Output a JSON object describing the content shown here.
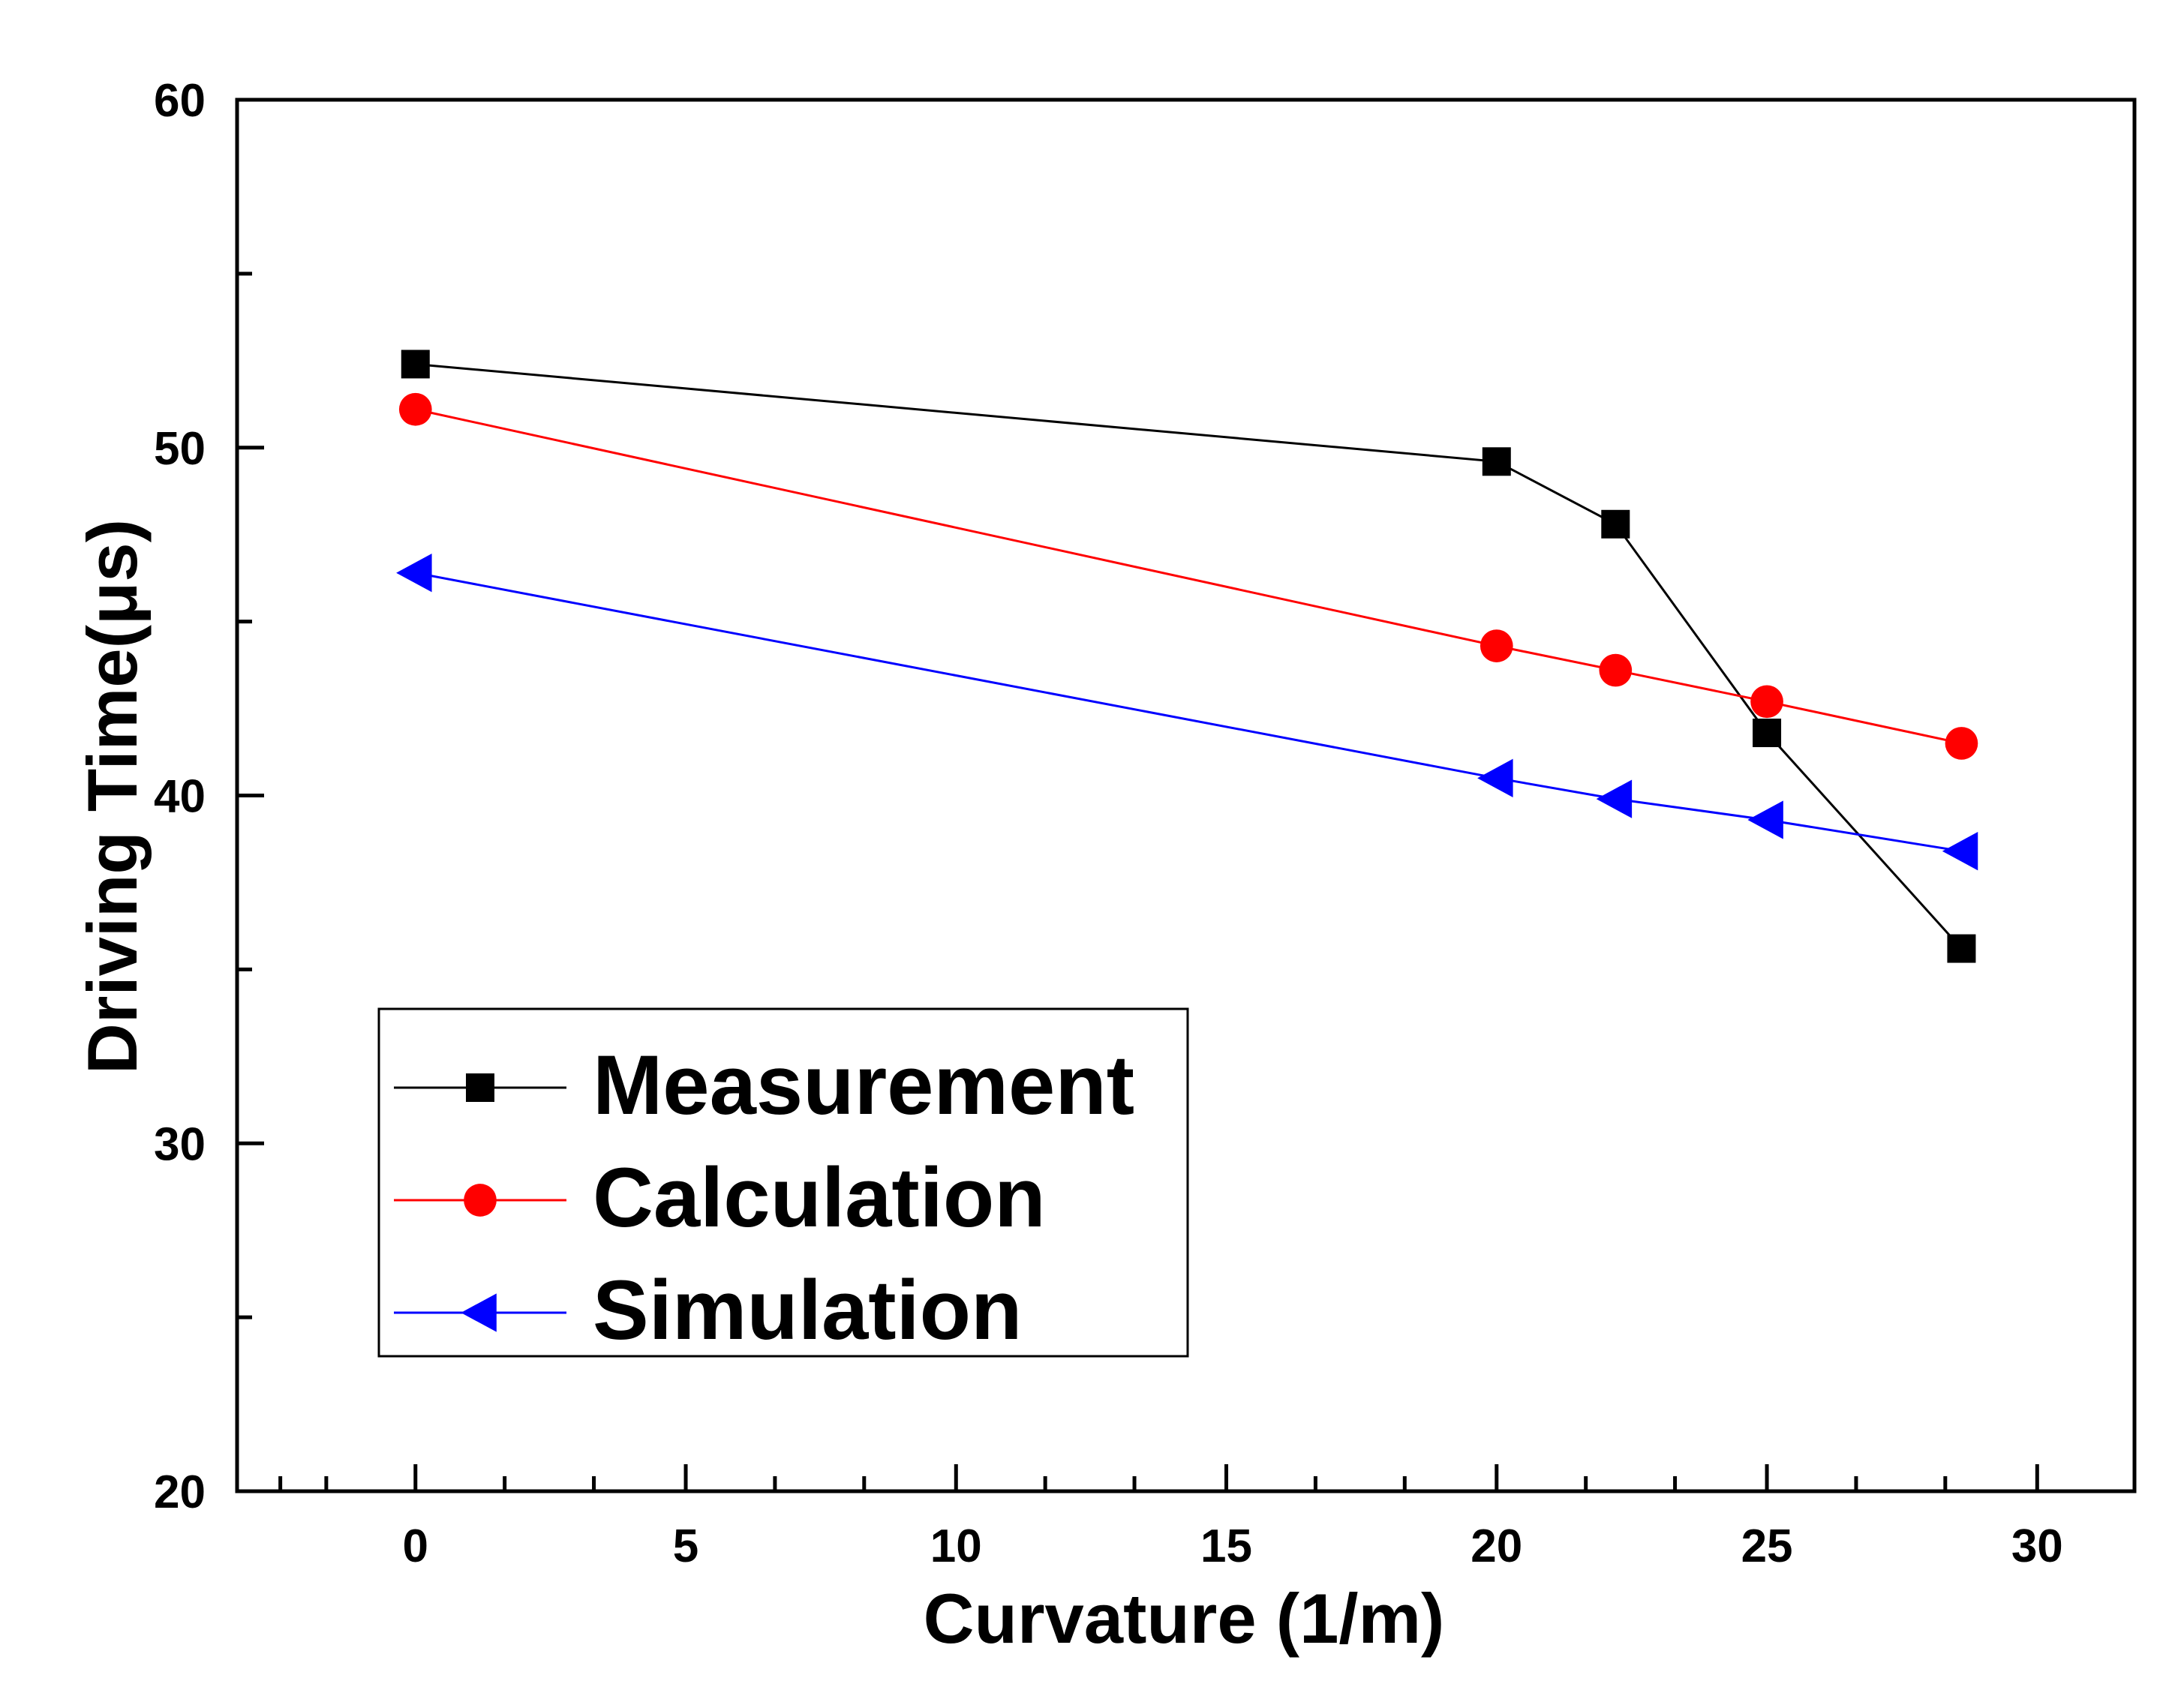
{
  "chart_data": {
    "type": "line",
    "title": "",
    "xlabel": "Curvature (1/m)",
    "ylabel": "Driving Time(μs)",
    "xlim": [
      -3.3,
      31.8
    ],
    "ylim": [
      20,
      60
    ],
    "x_ticks": [
      0,
      5,
      10,
      15,
      20,
      25,
      30
    ],
    "x_minor_ticks": [
      -2.5,
      -1.65,
      1.65,
      3.3,
      6.65,
      8.3,
      11.65,
      13.3,
      16.65,
      18.3,
      21.65,
      23.3,
      26.65,
      28.3
    ],
    "y_ticks": [
      20,
      30,
      40,
      50,
      60
    ],
    "y_minor_ticks": [
      25,
      35,
      45,
      55
    ],
    "legend_position": "lower-left",
    "series": [
      {
        "name": "Measurement",
        "color": "#000000",
        "marker": "square",
        "x": [
          0,
          20,
          22.2,
          25,
          28.6
        ],
        "y": [
          52.4,
          49.6,
          47.8,
          41.8,
          35.6
        ]
      },
      {
        "name": "Calculation",
        "color": "#ff0000",
        "marker": "circle",
        "x": [
          0,
          20,
          22.2,
          25,
          28.6
        ],
        "y": [
          51.1,
          44.3,
          43.6,
          42.7,
          41.5
        ]
      },
      {
        "name": "Simulation",
        "color": "#0000ff",
        "marker": "left-triangle",
        "x": [
          0,
          20,
          22.2,
          25,
          28.6
        ],
        "y": [
          46.4,
          40.5,
          39.9,
          39.3,
          38.4
        ]
      }
    ]
  }
}
